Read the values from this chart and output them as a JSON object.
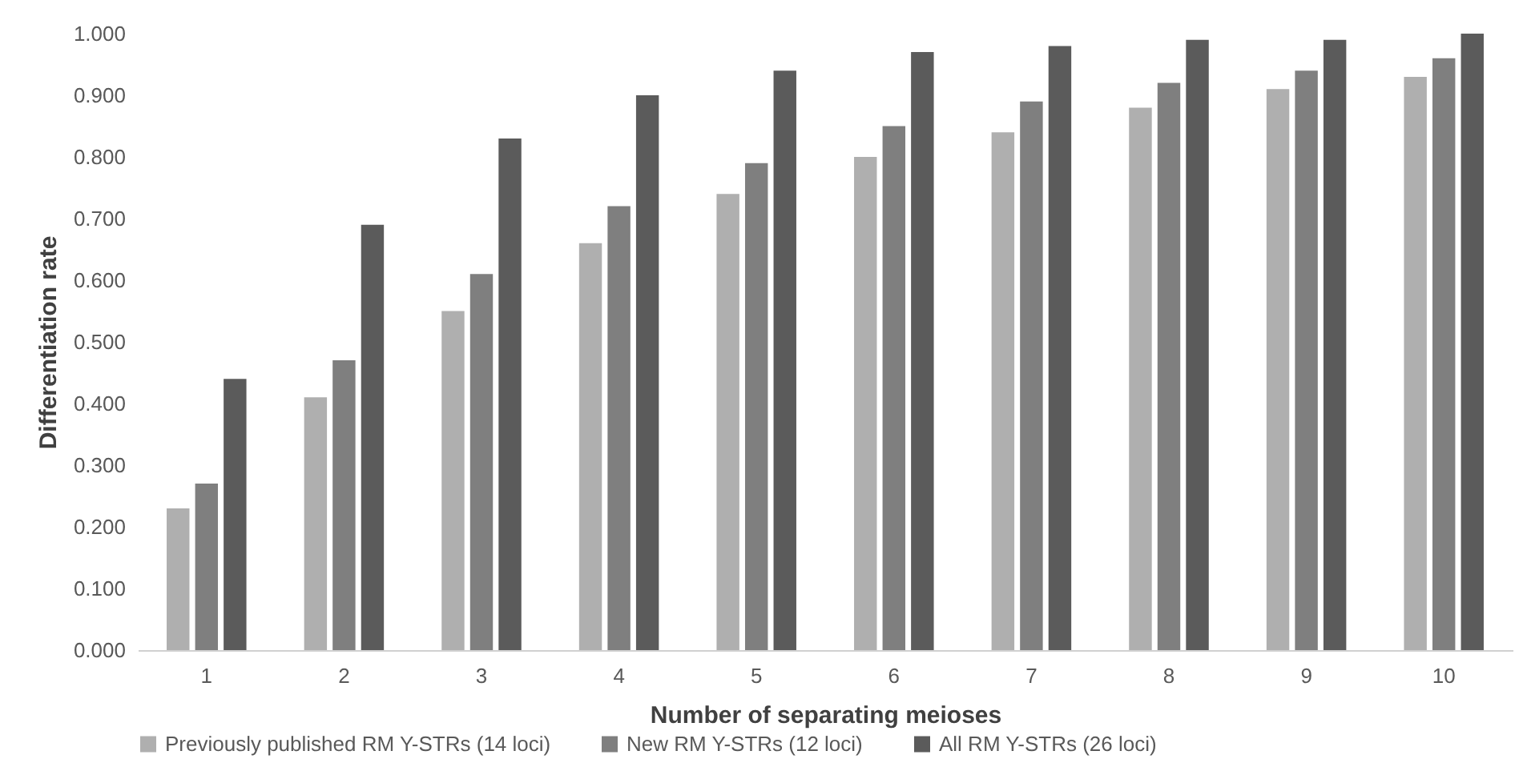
{
  "chart_data": {
    "type": "bar",
    "xlabel": "Number of separating meioses",
    "ylabel": "Differentiation rate",
    "categories": [
      "1",
      "2",
      "3",
      "4",
      "5",
      "6",
      "7",
      "8",
      "9",
      "10"
    ],
    "series": [
      {
        "name": "Previously published RM Y-STRs (14 loci)",
        "color": "#afafaf",
        "values": [
          0.23,
          0.41,
          0.55,
          0.66,
          0.74,
          0.8,
          0.84,
          0.88,
          0.91,
          0.93
        ]
      },
      {
        "name": "New RM Y-STRs (12 loci)",
        "color": "#7f7f7f",
        "values": [
          0.27,
          0.47,
          0.61,
          0.72,
          0.79,
          0.85,
          0.89,
          0.92,
          0.94,
          0.96
        ]
      },
      {
        "name": "All RM Y-STRs (26 loci)",
        "color": "#5b5b5b",
        "values": [
          0.44,
          0.69,
          0.83,
          0.9,
          0.94,
          0.97,
          0.98,
          0.99,
          0.99,
          1.0
        ]
      }
    ],
    "ylim": [
      0,
      1
    ],
    "yticks": [
      {
        "value": 0,
        "label": "0.000"
      },
      {
        "value": 0.1,
        "label": "0.100"
      },
      {
        "value": 0.2,
        "label": "0.200"
      },
      {
        "value": 0.3,
        "label": "0.300"
      },
      {
        "value": 0.4,
        "label": "0.400"
      },
      {
        "value": 0.5,
        "label": "0.500"
      },
      {
        "value": 0.6,
        "label": "0.600"
      },
      {
        "value": 0.7,
        "label": "0.700"
      },
      {
        "value": 0.8,
        "label": "0.800"
      },
      {
        "value": 0.9,
        "label": "0.900"
      },
      {
        "value": 1,
        "label": "1.000"
      }
    ],
    "grid": false,
    "legend": "bottom"
  }
}
